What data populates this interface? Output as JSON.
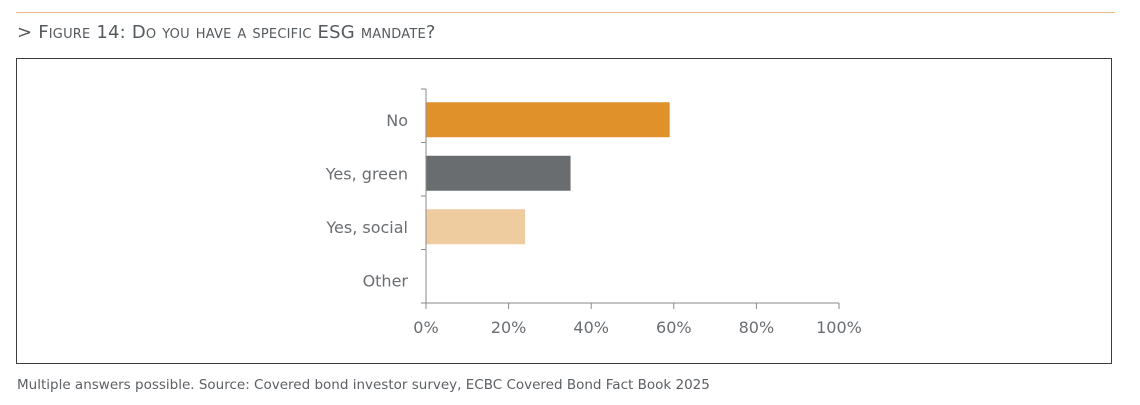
{
  "figure": {
    "title": "> Figure 14: Do you have a specific ESG mandate?"
  },
  "source_note": "Multiple answers possible. Source: Covered bond investor survey, ECBC Covered Bond Fact Book 2025",
  "chart_data": {
    "type": "bar",
    "orientation": "horizontal",
    "categories": [
      "No",
      "Yes, green",
      "Yes, social",
      "Other"
    ],
    "values": [
      59,
      35,
      24,
      0
    ],
    "colors": [
      "#e0912a",
      "#6a6d6f",
      "#efcca0",
      "#cccccc"
    ],
    "xlim": [
      0,
      100
    ],
    "ticks": [
      "0%",
      "20%",
      "40%",
      "60%",
      "80%",
      "100%"
    ],
    "tick_values": [
      0,
      20,
      40,
      60,
      80,
      100
    ],
    "grid": false,
    "legend": "none"
  }
}
